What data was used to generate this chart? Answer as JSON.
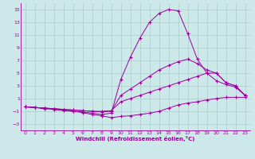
{
  "xlabel": "Windchill (Refroidissement éolien,°C)",
  "bg_color": "#cce8e8",
  "grid_color": "#aacaca",
  "line_color": "#990099",
  "x_ticks": [
    0,
    1,
    2,
    3,
    4,
    5,
    6,
    7,
    8,
    9,
    10,
    11,
    12,
    13,
    14,
    15,
    16,
    17,
    18,
    19,
    20,
    21,
    22,
    23
  ],
  "y_ticks": [
    -3,
    -1,
    1,
    3,
    5,
    7,
    9,
    11,
    13,
    15
  ],
  "ylim": [
    -4,
    16
  ],
  "xlim": [
    -0.5,
    23.5
  ],
  "lines": [
    {
      "x": [
        0,
        1,
        2,
        3,
        4,
        5,
        6,
        7,
        8,
        9,
        10,
        11,
        12,
        13,
        14,
        15,
        16,
        17,
        18,
        19,
        20,
        21,
        22,
        23
      ],
      "y": [
        -0.3,
        -0.4,
        -0.6,
        -0.7,
        -0.9,
        -1.0,
        -1.1,
        -1.3,
        -1.5,
        -1.3,
        4.0,
        7.5,
        10.5,
        13.0,
        14.4,
        15.0,
        14.8,
        11.2,
        7.2,
        5.0,
        3.8,
        3.2,
        2.8,
        1.5
      ]
    },
    {
      "x": [
        0,
        1,
        2,
        3,
        4,
        5,
        6,
        7,
        8,
        9,
        10,
        11,
        12,
        13,
        14,
        15,
        16,
        17,
        18,
        19,
        20,
        21,
        22,
        23
      ],
      "y": [
        -0.3,
        -0.4,
        -0.5,
        -0.6,
        -0.7,
        -0.8,
        -0.9,
        -1.0,
        -1.1,
        -1.0,
        1.5,
        2.5,
        3.5,
        4.5,
        5.5,
        6.2,
        6.8,
        7.2,
        6.5,
        5.5,
        5.0,
        3.5,
        3.0,
        1.5
      ]
    },
    {
      "x": [
        0,
        1,
        2,
        3,
        4,
        5,
        6,
        7,
        8,
        9,
        10,
        11,
        12,
        13,
        14,
        15,
        16,
        17,
        18,
        19,
        20,
        21,
        22,
        23
      ],
      "y": [
        -0.3,
        -0.4,
        -0.5,
        -0.6,
        -0.7,
        -0.8,
        -0.9,
        -1.0,
        -1.0,
        -0.9,
        0.5,
        1.0,
        1.5,
        2.0,
        2.5,
        3.0,
        3.5,
        4.0,
        4.5,
        5.0,
        5.0,
        3.5,
        3.0,
        1.5
      ]
    },
    {
      "x": [
        0,
        1,
        2,
        3,
        4,
        5,
        6,
        7,
        8,
        9,
        10,
        11,
        12,
        13,
        14,
        15,
        16,
        17,
        18,
        19,
        20,
        21,
        22,
        23
      ],
      "y": [
        -0.3,
        -0.4,
        -0.5,
        -0.6,
        -0.8,
        -1.0,
        -1.2,
        -1.5,
        -1.7,
        -2.0,
        -1.8,
        -1.7,
        -1.5,
        -1.3,
        -1.0,
        -0.5,
        0.0,
        0.3,
        0.5,
        0.8,
        1.0,
        1.2,
        1.2,
        1.2
      ]
    }
  ]
}
